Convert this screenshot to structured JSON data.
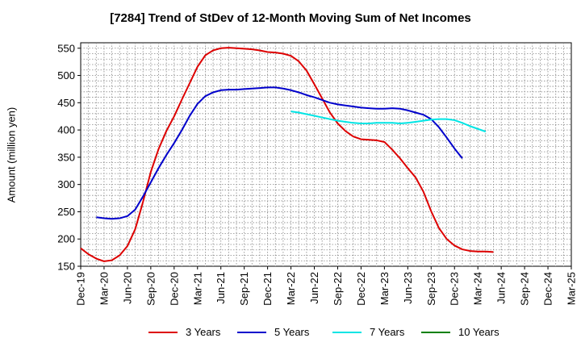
{
  "chart_data": {
    "type": "line",
    "title": "[7284]  Trend of StDev of 12-Month Moving Sum of Net Incomes",
    "xlabel": "",
    "ylabel": "Amount (million yen)",
    "ylim": [
      150,
      560
    ],
    "yticks": [
      150,
      200,
      250,
      300,
      350,
      400,
      450,
      500,
      550
    ],
    "x_ticks": [
      "Dec-19",
      "Mar-20",
      "Jun-20",
      "Sep-20",
      "Dec-20",
      "Mar-21",
      "Jun-21",
      "Sep-21",
      "Dec-21",
      "Mar-22",
      "Jun-22",
      "Sep-22",
      "Dec-22",
      "Mar-23",
      "Jun-23",
      "Sep-23",
      "Dec-23",
      "Mar-24",
      "Jun-24",
      "Sep-24",
      "Dec-24",
      "Mar-25"
    ],
    "grid": true,
    "legend_position": "bottom",
    "series": [
      {
        "name": "3 Years",
        "color": "#dd0000",
        "start_index": 0,
        "values": [
          183,
          172,
          164,
          159,
          161,
          170,
          187,
          218,
          268,
          323,
          365,
          398,
          425,
          456,
          486,
          516,
          537,
          546,
          550,
          551,
          550,
          549,
          548,
          546,
          543,
          542,
          540,
          536,
          526,
          509,
          484,
          458,
          432,
          412,
          398,
          388,
          383,
          382,
          381,
          378,
          364,
          348,
          330,
          313,
          287,
          251,
          220,
          200,
          188,
          181,
          178,
          177,
          177,
          176
        ]
      },
      {
        "name": "5 Years",
        "color": "#0000cc",
        "start_index": 2,
        "values": [
          240,
          238,
          237,
          238,
          242,
          254,
          278,
          304,
          330,
          354,
          376,
          400,
          426,
          448,
          462,
          469,
          473,
          474,
          474,
          475,
          476,
          477,
          478,
          478,
          476,
          473,
          469,
          464,
          460,
          455,
          450,
          447,
          445,
          443,
          441,
          440,
          439,
          439,
          440,
          439,
          436,
          432,
          428,
          420,
          405,
          386,
          366,
          348
        ]
      },
      {
        "name": "7 Years",
        "color": "#00e5e5",
        "start_index": 27,
        "values": [
          434,
          432,
          429,
          426,
          423,
          420,
          417,
          415,
          413,
          412,
          412,
          413,
          413,
          413,
          412,
          413,
          415,
          417,
          419,
          420,
          420,
          418,
          413,
          407,
          402,
          397
        ]
      },
      {
        "name": "10 Years",
        "color": "#008000",
        "start_index": 0,
        "values": []
      }
    ]
  }
}
